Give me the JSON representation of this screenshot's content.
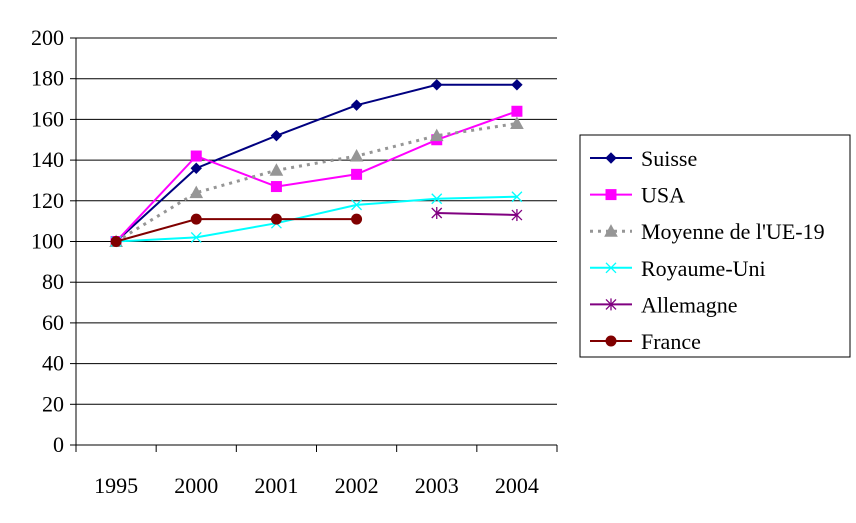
{
  "chart_data": {
    "type": "line",
    "categories": [
      "1995",
      "2000",
      "2001",
      "2002",
      "2003",
      "2004"
    ],
    "ylim": [
      0,
      200
    ],
    "yticks": [
      0,
      20,
      40,
      60,
      80,
      100,
      120,
      140,
      160,
      180,
      200
    ],
    "grid": true,
    "legend_position": "right",
    "series": [
      {
        "name": "Suisse",
        "values": [
          100,
          136,
          152,
          167,
          177,
          177
        ],
        "color": "#000080",
        "marker": "diamond",
        "dash": "solid"
      },
      {
        "name": "USA",
        "values": [
          100,
          142,
          127,
          133,
          150,
          164
        ],
        "color": "#ff00ff",
        "marker": "square",
        "dash": "solid"
      },
      {
        "name": "Moyenne de l'UE-19",
        "values": [
          100,
          124,
          135,
          142,
          152,
          158
        ],
        "color": "#969696",
        "marker": "triangle",
        "dash": "dotted"
      },
      {
        "name": "Royaume-Uni",
        "values": [
          100,
          102,
          109,
          118,
          121,
          122
        ],
        "color": "#00ffff",
        "marker": "x",
        "dash": "solid"
      },
      {
        "name": "Allemagne",
        "values": [
          null,
          null,
          null,
          null,
          114,
          113
        ],
        "color": "#800080",
        "marker": "star",
        "dash": "solid"
      },
      {
        "name": "France",
        "values": [
          100,
          111,
          111,
          111,
          null,
          null
        ],
        "color": "#800000",
        "marker": "circle",
        "dash": "solid"
      }
    ]
  }
}
